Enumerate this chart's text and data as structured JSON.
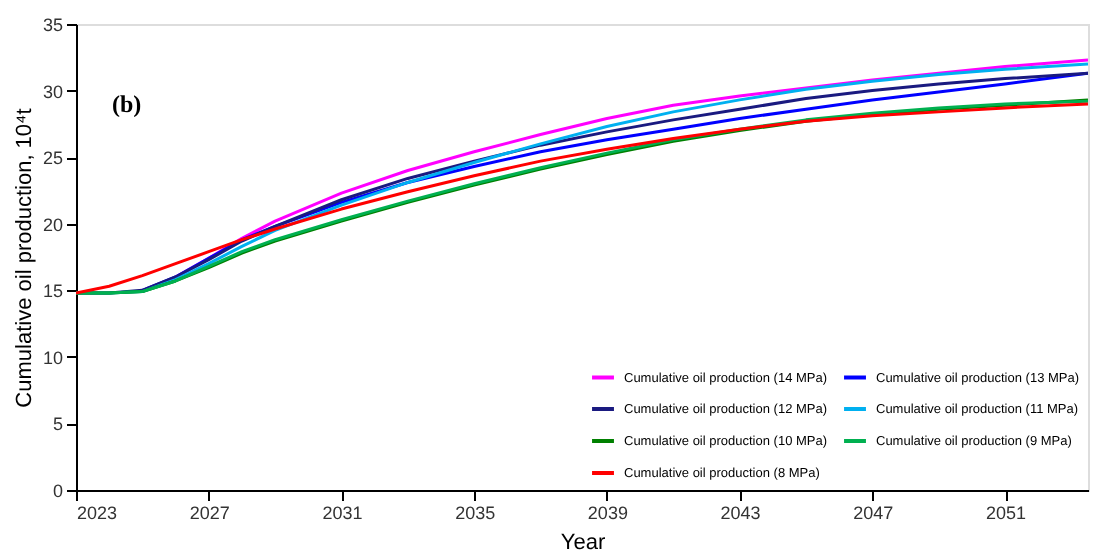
{
  "chart_data": {
    "type": "line",
    "xlabel": "Year",
    "ylabel": "Cumulative oil production, 10⁴t",
    "annotations": [
      "(b)"
    ],
    "x": [
      2023,
      2024,
      2025,
      2026,
      2027,
      2028,
      2029,
      2031,
      2033,
      2035,
      2037,
      2039,
      2041,
      2043,
      2045,
      2047,
      2049,
      2051,
      2053.5
    ],
    "series": [
      {
        "name": "Cumulative oil production (14 MPa)",
        "color": "#ff00ff",
        "values": [
          null,
          null,
          null,
          16.0,
          17.4,
          18.9,
          20.2,
          22.3,
          24.0,
          25.4,
          26.7,
          27.9,
          28.9,
          29.6,
          30.2,
          30.8,
          31.3,
          31.8,
          32.3
        ]
      },
      {
        "name": "Cumulative oil production (13 MPa)",
        "color": "#0000ff",
        "values": [
          null,
          null,
          15.0,
          16.0,
          17.4,
          18.8,
          19.8,
          21.6,
          23.1,
          24.3,
          25.4,
          26.3,
          27.1,
          27.9,
          28.6,
          29.3,
          29.9,
          30.5,
          31.3
        ]
      },
      {
        "name": "Cumulative oil production (12 MPa)",
        "color": "#1a1a80",
        "values": [
          14.8,
          14.8,
          15.0,
          16.0,
          17.3,
          18.7,
          19.8,
          21.8,
          23.4,
          24.7,
          25.9,
          26.9,
          27.8,
          28.6,
          29.4,
          30.0,
          30.5,
          30.9,
          31.3
        ]
      },
      {
        "name": "Cumulative oil production (11 MPa)",
        "color": "#00b0f0",
        "values": [
          14.8,
          14.8,
          14.9,
          15.8,
          17.0,
          18.3,
          19.5,
          21.4,
          23.1,
          24.6,
          26.0,
          27.3,
          28.4,
          29.3,
          30.1,
          30.7,
          31.2,
          31.6,
          32.0
        ]
      },
      {
        "name": "Cumulative oil production (10 MPa)",
        "color": "#008000",
        "values": [
          14.8,
          14.8,
          14.9,
          15.7,
          16.7,
          17.8,
          18.7,
          20.2,
          21.6,
          22.9,
          24.1,
          25.2,
          26.2,
          27.0,
          27.7,
          28.2,
          28.6,
          28.9,
          29.3
        ]
      },
      {
        "name": "Cumulative oil production (9 MPa)",
        "color": "#00b050",
        "values": [
          14.8,
          14.8,
          14.9,
          15.7,
          16.8,
          17.9,
          18.8,
          20.3,
          21.7,
          23.0,
          24.2,
          25.3,
          26.3,
          27.1,
          27.8,
          28.3,
          28.7,
          29.0,
          29.2
        ]
      },
      {
        "name": "Cumulative oil production (8 MPa)",
        "color": "#ff0000",
        "values": [
          14.8,
          15.3,
          16.1,
          17.0,
          17.9,
          18.8,
          19.6,
          21.1,
          22.4,
          23.6,
          24.7,
          25.6,
          26.4,
          27.1,
          27.7,
          28.1,
          28.4,
          28.7,
          29.0
        ]
      }
    ],
    "xlim": [
      2023,
      2053.5
    ],
    "xticks": [
      2023,
      2027,
      2031,
      2035,
      2039,
      2043,
      2047,
      2051
    ],
    "ylim": [
      0,
      35
    ],
    "yticks": [
      0,
      5,
      10,
      15,
      20,
      25,
      30,
      35
    ],
    "grid": false,
    "legend": "bottom right",
    "marker": "none",
    "line_style": "solid"
  }
}
